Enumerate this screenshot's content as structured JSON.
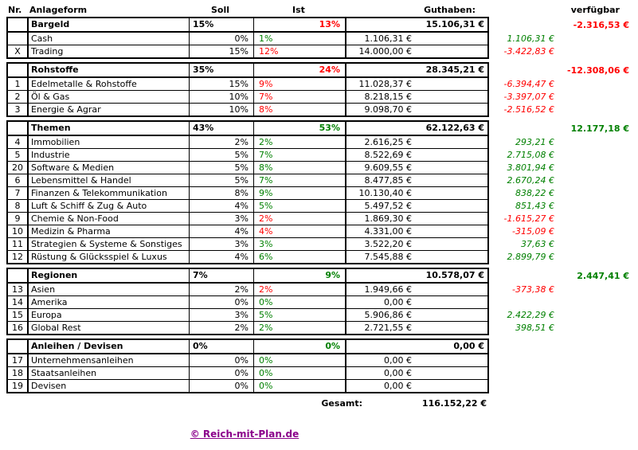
{
  "colors": {
    "positive": "#008000",
    "negative": "#ff0000",
    "link": "#8b008b"
  },
  "header": {
    "nr": "Nr.",
    "anlageform": "Anlageform",
    "soll": "Soll",
    "ist": "Ist",
    "guthaben": "Guthaben:",
    "verfuegbar": "verfügbar"
  },
  "sections": [
    {
      "id": "bargeld",
      "group": {
        "name": "Bargeld",
        "soll": "15%",
        "ist": "13%",
        "ist_color": "neg",
        "guthaben": "15.106,31 €",
        "verfuegbar": "-2.316,53 €",
        "verfuegbar_color": "neg"
      },
      "rows": [
        {
          "nr": "",
          "name": "Cash",
          "soll": "0%",
          "ist": "1%",
          "ist_color": "pos",
          "guthaben": "1.106,31 €",
          "verfuegbar": "1.106,31 €",
          "verfuegbar_color": "pos"
        },
        {
          "nr": "X",
          "name": "Trading",
          "soll": "15%",
          "ist": "12%",
          "ist_color": "neg",
          "guthaben": "14.000,00 €",
          "verfuegbar": "-3.422,83 €",
          "verfuegbar_color": "neg"
        }
      ]
    },
    {
      "id": "rohstoffe",
      "group": {
        "name": "Rohstoffe",
        "soll": "35%",
        "ist": "24%",
        "ist_color": "neg",
        "guthaben": "28.345,21 €",
        "verfuegbar": "-12.308,06 €",
        "verfuegbar_color": "neg"
      },
      "rows": [
        {
          "nr": "1",
          "name": "Edelmetalle & Rohstoffe",
          "soll": "15%",
          "ist": "9%",
          "ist_color": "neg",
          "guthaben": "11.028,37 €",
          "verfuegbar": "-6.394,47 €",
          "verfuegbar_color": "neg"
        },
        {
          "nr": "2",
          "name": "Öl & Gas",
          "soll": "10%",
          "ist": "7%",
          "ist_color": "neg",
          "guthaben": "8.218,15 €",
          "verfuegbar": "-3.397,07 €",
          "verfuegbar_color": "neg"
        },
        {
          "nr": "3",
          "name": "Energie & Agrar",
          "soll": "10%",
          "ist": "8%",
          "ist_color": "neg",
          "guthaben": "9.098,70 €",
          "verfuegbar": "-2.516,52 €",
          "verfuegbar_color": "neg"
        }
      ]
    },
    {
      "id": "themen",
      "group": {
        "name": "Themen",
        "soll": "43%",
        "ist": "53%",
        "ist_color": "pos",
        "guthaben": "62.122,63 €",
        "verfuegbar": "12.177,18 €",
        "verfuegbar_color": "pos"
      },
      "rows": [
        {
          "nr": "4",
          "name": "Immobilien",
          "soll": "2%",
          "ist": "2%",
          "ist_color": "pos",
          "guthaben": "2.616,25 €",
          "verfuegbar": "293,21 €",
          "verfuegbar_color": "pos"
        },
        {
          "nr": "5",
          "name": "Industrie",
          "soll": "5%",
          "ist": "7%",
          "ist_color": "pos",
          "guthaben": "8.522,69 €",
          "verfuegbar": "2.715,08 €",
          "verfuegbar_color": "pos"
        },
        {
          "nr": "20",
          "name": "Software & Medien",
          "soll": "5%",
          "ist": "8%",
          "ist_color": "pos",
          "guthaben": "9.609,55 €",
          "verfuegbar": "3.801,94 €",
          "verfuegbar_color": "pos"
        },
        {
          "nr": "6",
          "name": "Lebensmittel & Handel",
          "soll": "5%",
          "ist": "7%",
          "ist_color": "pos",
          "guthaben": "8.477,85 €",
          "verfuegbar": "2.670,24 €",
          "verfuegbar_color": "pos"
        },
        {
          "nr": "7",
          "name": "Finanzen & Telekommunikation",
          "soll": "8%",
          "ist": "9%",
          "ist_color": "pos",
          "guthaben": "10.130,40 €",
          "verfuegbar": "838,22 €",
          "verfuegbar_color": "pos"
        },
        {
          "nr": "8",
          "name": "Luft & Schiff & Zug & Auto",
          "soll": "4%",
          "ist": "5%",
          "ist_color": "pos",
          "guthaben": "5.497,52 €",
          "verfuegbar": "851,43 €",
          "verfuegbar_color": "pos"
        },
        {
          "nr": "9",
          "name": "Chemie & Non-Food",
          "soll": "3%",
          "ist": "2%",
          "ist_color": "neg",
          "guthaben": "1.869,30 €",
          "verfuegbar": "-1.615,27 €",
          "verfuegbar_color": "neg"
        },
        {
          "nr": "10",
          "name": "Medizin & Pharma",
          "soll": "4%",
          "ist": "4%",
          "ist_color": "neg",
          "guthaben": "4.331,00 €",
          "verfuegbar": "-315,09 €",
          "verfuegbar_color": "neg"
        },
        {
          "nr": "11",
          "name": "Strategien & Systeme & Sonstiges",
          "soll": "3%",
          "ist": "3%",
          "ist_color": "pos",
          "guthaben": "3.522,20 €",
          "verfuegbar": "37,63 €",
          "verfuegbar_color": "pos"
        },
        {
          "nr": "12",
          "name": "Rüstung & Glücksspiel & Luxus",
          "soll": "4%",
          "ist": "6%",
          "ist_color": "pos",
          "guthaben": "7.545,88 €",
          "verfuegbar": "2.899,79 €",
          "verfuegbar_color": "pos"
        }
      ]
    },
    {
      "id": "regionen",
      "group": {
        "name": "Regionen",
        "soll": "7%",
        "ist": "9%",
        "ist_color": "pos",
        "guthaben": "10.578,07 €",
        "verfuegbar": "2.447,41 €",
        "verfuegbar_color": "pos"
      },
      "rows": [
        {
          "nr": "13",
          "name": "Asien",
          "soll": "2%",
          "ist": "2%",
          "ist_color": "neg",
          "guthaben": "1.949,66 €",
          "verfuegbar": "-373,38 €",
          "verfuegbar_color": "neg"
        },
        {
          "nr": "14",
          "name": "Amerika",
          "soll": "0%",
          "ist": "0%",
          "ist_color": "pos",
          "guthaben": "0,00 €",
          "verfuegbar": "",
          "verfuegbar_color": ""
        },
        {
          "nr": "15",
          "name": "Europa",
          "soll": "3%",
          "ist": "5%",
          "ist_color": "pos",
          "guthaben": "5.906,86 €",
          "verfuegbar": "2.422,29 €",
          "verfuegbar_color": "pos"
        },
        {
          "nr": "16",
          "name": "Global Rest",
          "soll": "2%",
          "ist": "2%",
          "ist_color": "pos",
          "guthaben": "2.721,55 €",
          "verfuegbar": "398,51 €",
          "verfuegbar_color": "pos"
        }
      ]
    },
    {
      "id": "anleihen-devisen",
      "group": {
        "name": "Anleihen / Devisen",
        "soll": "0%",
        "ist": "0%",
        "ist_color": "pos",
        "guthaben": "0,00 €",
        "verfuegbar": "",
        "verfuegbar_color": ""
      },
      "rows": [
        {
          "nr": "17",
          "name": "Unternehmensanleihen",
          "soll": "0%",
          "ist": "0%",
          "ist_color": "pos",
          "guthaben": "0,00 €",
          "verfuegbar": "",
          "verfuegbar_color": ""
        },
        {
          "nr": "18",
          "name": "Staatsanleihen",
          "soll": "0%",
          "ist": "0%",
          "ist_color": "pos",
          "guthaben": "0,00 €",
          "verfuegbar": "",
          "verfuegbar_color": ""
        },
        {
          "nr": "19",
          "name": "Devisen",
          "soll": "0%",
          "ist": "0%",
          "ist_color": "pos",
          "guthaben": "0,00 €",
          "verfuegbar": "",
          "verfuegbar_color": ""
        }
      ]
    }
  ],
  "footer": {
    "gesamt_label": "Gesamt:",
    "gesamt_value": "116.152,22 €",
    "copyright": "© Reich-mit-Plan.de"
  }
}
